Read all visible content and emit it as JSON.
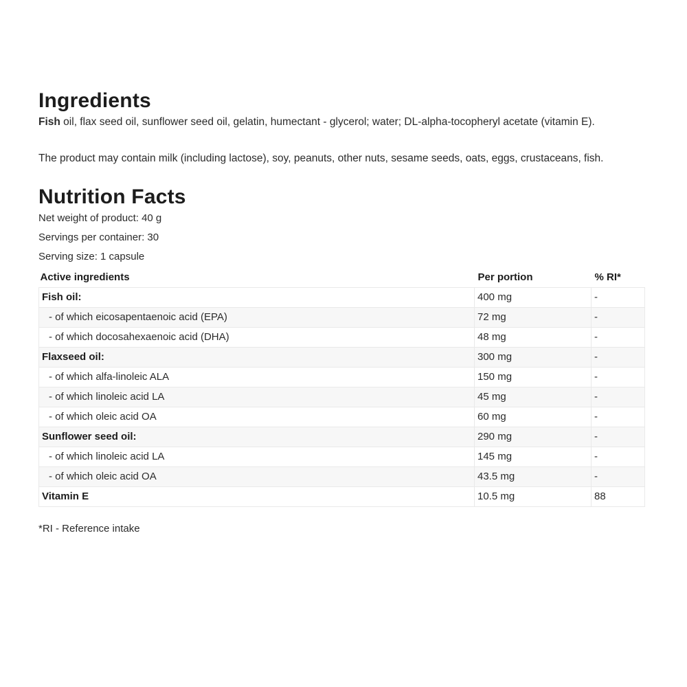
{
  "ingredients": {
    "title": "Ingredients",
    "composition_bold": "Fish",
    "composition_rest": " oil, flax seed oil, sunflower seed oil, gelatin, humectant - glycerol; water; DL-alpha-tocopheryl acetate (vitamin E).",
    "allergens": "The product may contain milk (including lactose), soy, peanuts, other nuts, sesame seeds, oats, eggs, crustaceans, fish."
  },
  "nutrition": {
    "title": "Nutrition Facts",
    "net_weight": "Net weight of product: 40 g",
    "servings_per_container": "Servings per container: 30",
    "serving_size": "Serving size: 1 capsule",
    "table": {
      "headers": [
        "Active ingredients",
        "Per portion",
        "% RI*"
      ],
      "rows": [
        {
          "name": "Fish oil:",
          "bold": true,
          "indent": false,
          "per_portion": "400 mg",
          "ri": "-"
        },
        {
          "name": "- of which eicosapentaenoic acid (EPA)",
          "bold": false,
          "indent": true,
          "per_portion": "72 mg",
          "ri": "-"
        },
        {
          "name": "- of which docosahexaenoic acid (DHA)",
          "bold": false,
          "indent": true,
          "per_portion": "48 mg",
          "ri": "-"
        },
        {
          "name": "Flaxseed oil:",
          "bold": true,
          "indent": false,
          "per_portion": "300 mg",
          "ri": "-"
        },
        {
          "name": "- of which alfa-linoleic ALA",
          "bold": false,
          "indent": true,
          "per_portion": "150 mg",
          "ri": "-"
        },
        {
          "name": "- of which linoleic acid LA",
          "bold": false,
          "indent": true,
          "per_portion": "45 mg",
          "ri": "-"
        },
        {
          "name": "- of which oleic acid OA",
          "bold": false,
          "indent": true,
          "per_portion": "60 mg",
          "ri": "-"
        },
        {
          "name": "Sunflower seed oil:",
          "bold": true,
          "indent": false,
          "per_portion": "290 mg",
          "ri": "-"
        },
        {
          "name": "- of which linoleic acid LA",
          "bold": false,
          "indent": true,
          "per_portion": "145 mg",
          "ri": "-"
        },
        {
          "name": "- of which oleic acid OA",
          "bold": false,
          "indent": true,
          "per_portion": "43.5 mg",
          "ri": "-"
        },
        {
          "name": "Vitamin E",
          "bold": true,
          "indent": false,
          "per_portion": "10.5 mg",
          "ri": "88"
        }
      ]
    },
    "footnote": "*RI - Reference intake"
  },
  "colors": {
    "text": "#2b2b2b",
    "heading": "#1c1c1c",
    "stripe": "#f7f7f7",
    "border": "#e9e9e9",
    "background": "#ffffff"
  }
}
